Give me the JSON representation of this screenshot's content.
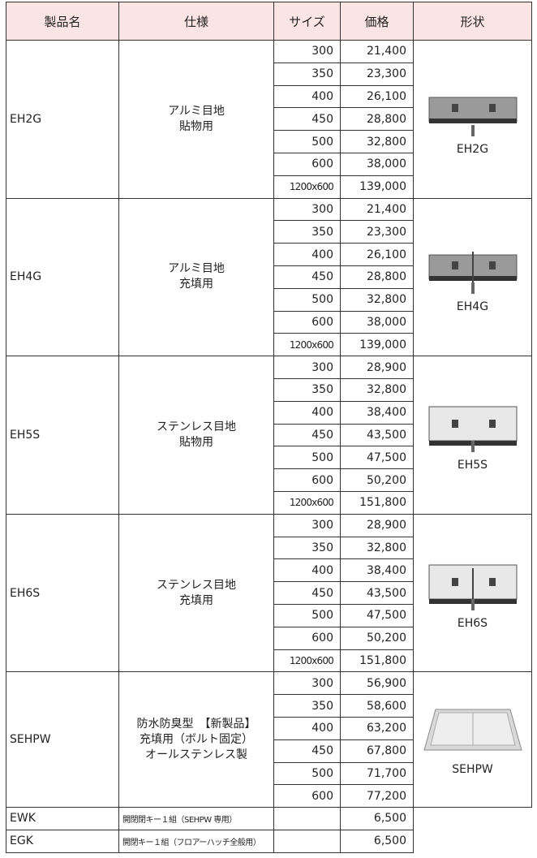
{
  "table": {
    "header": [
      "製品名",
      "仕様",
      "サイズ",
      "価格",
      "形状"
    ],
    "groups": [
      {
        "name": "EH2G",
        "spec": [
          "アルミ目地",
          "貼物用"
        ],
        "sizes": [
          "300",
          "350",
          "400",
          "450",
          "500",
          "600",
          "1200x600"
        ],
        "prices": [
          "21,400",
          "23,300",
          "26,100",
          "28,800",
          "32,800",
          "38,000",
          "139,000"
        ],
        "shape": "EH2G"
      },
      {
        "name": "EH4G",
        "spec": [
          "アルミ目地",
          "充填用"
        ],
        "sizes": [
          "300",
          "350",
          "400",
          "450",
          "500",
          "600",
          "1200x600"
        ],
        "prices": [
          "21,400",
          "23,300",
          "26,100",
          "28,800",
          "32,800",
          "38,000",
          "139,000"
        ],
        "shape": "EH4G"
      },
      {
        "name": "EH5S",
        "spec": [
          "ステンレス目地",
          "貼物用"
        ],
        "sizes": [
          "300",
          "350",
          "400",
          "450",
          "500",
          "600",
          "1200x600"
        ],
        "prices": [
          "28,900",
          "32,800",
          "38,400",
          "43,500",
          "47,500",
          "50,200",
          "151,800"
        ],
        "shape": "EH5S"
      },
      {
        "name": "EH6S",
        "spec": [
          "ステンレス目地",
          "充填用"
        ],
        "sizes": [
          "300",
          "350",
          "400",
          "450",
          "500",
          "600",
          "1200x600"
        ],
        "prices": [
          "28,900",
          "32,800",
          "38,400",
          "43,500",
          "47,500",
          "50,200",
          "151,800"
        ],
        "shape": "EH6S"
      },
      {
        "name": "SEHPW",
        "spec": [
          "防水防臭型　【新製品】",
          "充填用（ボルト固定）",
          "オールステンレス製"
        ],
        "sizes": [
          "300",
          "350",
          "400",
          "450",
          "500",
          "600"
        ],
        "prices": [
          "56,900",
          "58,600",
          "63,200",
          "67,800",
          "71,700",
          "77,200"
        ],
        "shape": "SEHPW"
      }
    ],
    "extras": [
      {
        "name": "EWK",
        "spec": "開閉閉キー１組（SEHPW 専用）",
        "price": "6,500"
      },
      {
        "name": "EGK",
        "spec": "開閉キー１組（フロアーハッチ全般用）",
        "price": "6,500"
      }
    ]
  }
}
